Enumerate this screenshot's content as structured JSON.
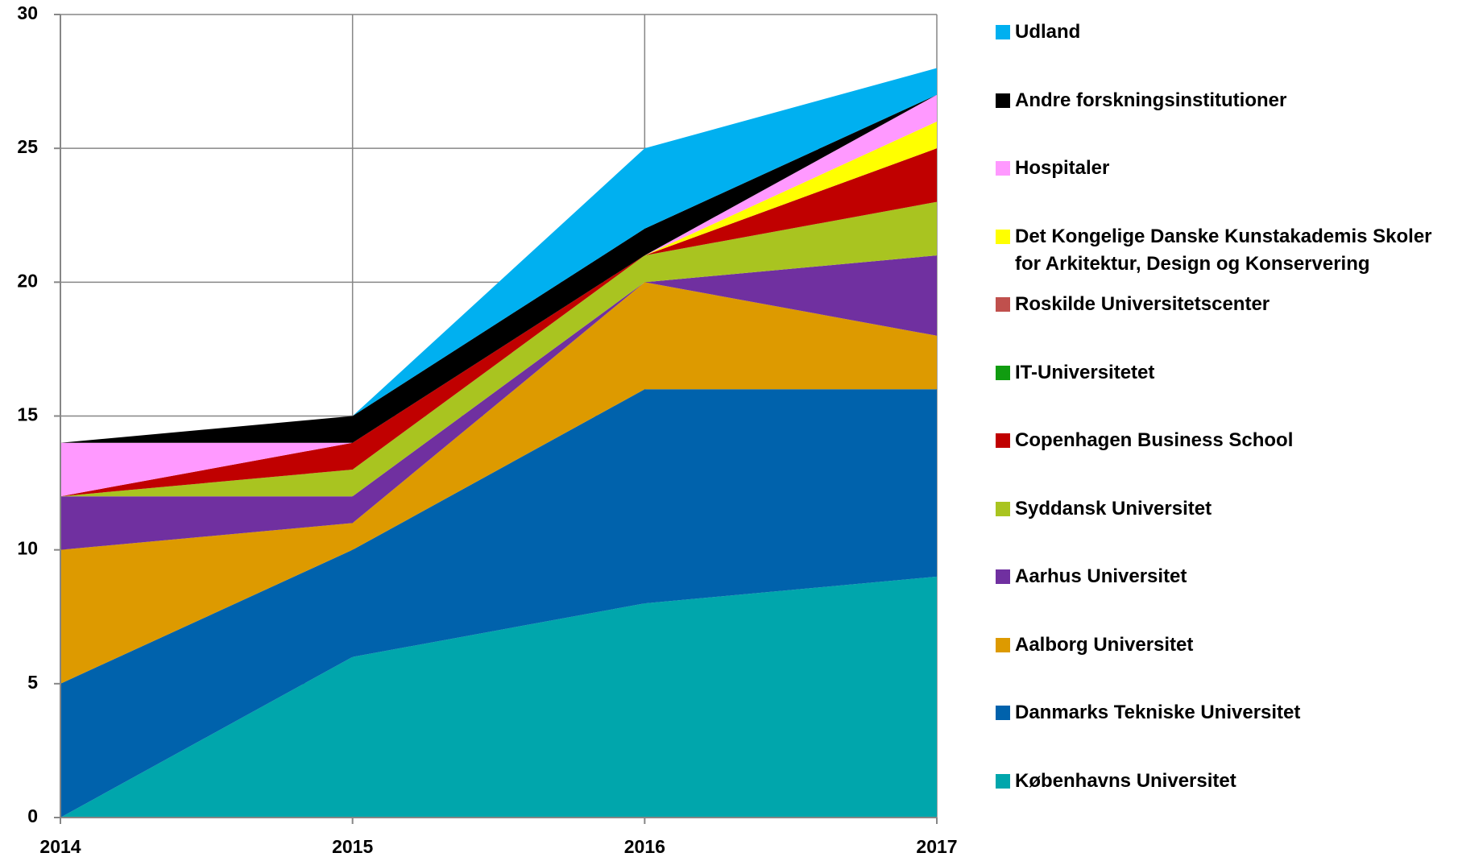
{
  "chart_data": {
    "type": "stacked_area",
    "x": [
      2014,
      2015,
      2016,
      2017
    ],
    "xlim": [
      2014,
      2017
    ],
    "xticks": [
      2014,
      2015,
      2016,
      2017
    ],
    "ylim": [
      0,
      30
    ],
    "yticks": [
      0,
      5,
      10,
      15,
      20,
      25,
      30
    ],
    "grid": true,
    "legend": "right",
    "series": [
      {
        "name": "Københavns Universitet",
        "color": "#00a6ac",
        "values": [
          0,
          6,
          8,
          9
        ]
      },
      {
        "name": "Danmarks Tekniske Universitet",
        "color": "#0062ac",
        "values": [
          5,
          4,
          8,
          7
        ]
      },
      {
        "name": "Aalborg Universitet",
        "color": "#dd9a00",
        "values": [
          5,
          1,
          4,
          2
        ]
      },
      {
        "name": "Aarhus Universitet",
        "color": "#7030a0",
        "values": [
          2,
          1,
          0,
          3
        ]
      },
      {
        "name": "Syddansk Universitet",
        "color": "#a9c420",
        "values": [
          0,
          1,
          1,
          2
        ]
      },
      {
        "name": "Copenhagen Business School",
        "color": "#c00000",
        "values": [
          0,
          1,
          0,
          2
        ]
      },
      {
        "name": "IT-Universitetet",
        "color": "#109c10",
        "values": [
          0,
          0,
          0,
          0
        ]
      },
      {
        "name": "Roskilde Universitetscenter",
        "color": "#c0504d",
        "values": [
          0,
          0,
          0,
          0
        ]
      },
      {
        "name": "Det Kongelige Danske Kunstakademis Skoler for Arkitektur, Design og Konservering",
        "color": "#ffff00",
        "values": [
          0,
          0,
          0,
          1
        ]
      },
      {
        "name": "Hospitaler",
        "color": "#ff99ff",
        "values": [
          2,
          0,
          0,
          1
        ]
      },
      {
        "name": "Andre forskningsinstitutioner",
        "color": "#000000",
        "values": [
          0,
          1,
          1,
          0
        ]
      },
      {
        "name": "Udland",
        "color": "#00b0f0",
        "values": [
          0,
          0,
          3,
          1
        ]
      }
    ]
  }
}
